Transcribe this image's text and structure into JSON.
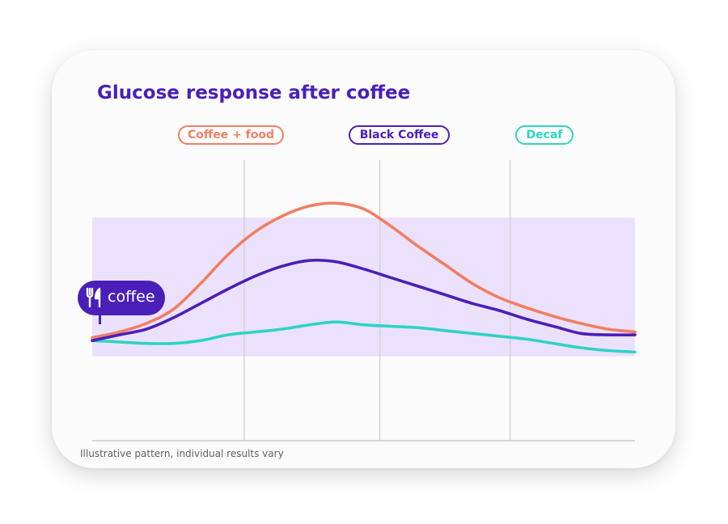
{
  "chart_data": {
    "type": "line",
    "title": "Glucose response after coffee",
    "x": [
      0,
      5,
      10,
      15,
      20,
      25,
      30,
      35,
      40,
      45,
      50,
      55,
      60,
      65,
      70,
      75,
      80,
      85,
      90,
      95,
      100
    ],
    "series": [
      {
        "name": "Coffee + food",
        "color": "#f07f62",
        "values": [
          2,
          6,
          12,
          22,
          40,
          60,
          76,
          87,
          94,
          96,
          92,
          80,
          66,
          53,
          40,
          30,
          23,
          17,
          12,
          8,
          6
        ]
      },
      {
        "name": "Black Coffee",
        "color": "#4a1fb8",
        "values": [
          0,
          4,
          8,
          16,
          26,
          36,
          45,
          52,
          56,
          55,
          50,
          44,
          38,
          32,
          26,
          21,
          15,
          10,
          5,
          4,
          4
        ]
      },
      {
        "name": "Decaf",
        "color": "#2ed3c4",
        "values": [
          0,
          -1,
          -2,
          -2,
          0,
          4,
          6,
          8,
          11,
          13,
          11,
          10,
          9,
          7,
          5,
          3,
          1,
          -2,
          -5,
          -7,
          -8
        ]
      }
    ],
    "target_band": [
      -11,
      86
    ],
    "ylim": [
      -70,
      125
    ],
    "vertical_gridlines_x": [
      28,
      53,
      77
    ],
    "grid": true,
    "legend": "top"
  },
  "annotation": {
    "meal_icon": "fork-knife-icon",
    "label": "coffee"
  },
  "footnote": "Illustrative pattern, individual results vary"
}
